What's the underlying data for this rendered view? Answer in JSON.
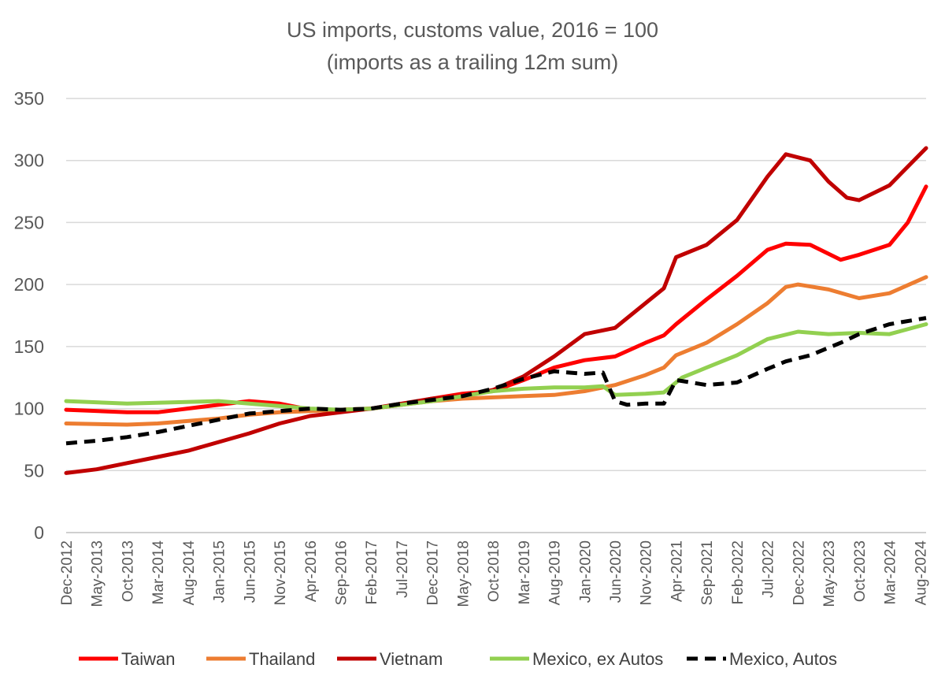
{
  "chart_data": {
    "type": "line",
    "title": "US imports, customs value, 2016 = 100",
    "subtitle": "(imports as a trailing 12m sum)",
    "xlabel": "",
    "ylabel": "",
    "ylim": [
      0,
      350
    ],
    "yticks": [
      "0",
      "50",
      "100",
      "150",
      "200",
      "250",
      "300",
      "350"
    ],
    "x_start": "Dec-2012",
    "x_end": "Sep-2024",
    "xticks": [
      "Dec-2012",
      "May-2013",
      "Oct-2013",
      "Mar-2014",
      "Aug-2014",
      "Jan-2015",
      "Jun-2015",
      "Nov-2015",
      "Apr-2016",
      "Sep-2016",
      "Feb-2017",
      "Jul-2017",
      "Dec-2017",
      "May-2018",
      "Oct-2018",
      "Mar-2019",
      "Aug-2019",
      "Jan-2020",
      "Jun-2020",
      "Nov-2020",
      "Apr-2021",
      "Sep-2021",
      "Feb-2022",
      "Jul-2022",
      "Dec-2022",
      "May-2023",
      "Oct-2023",
      "Mar-2024",
      "Aug-2024"
    ],
    "grid": "horizontal",
    "legend": "bottom",
    "series": [
      {
        "name": "Taiwan",
        "color": "#ff0000",
        "dash": "solid",
        "points": [
          [
            "Dec-2012",
            99
          ],
          [
            "Oct-2013",
            97
          ],
          [
            "Mar-2014",
            97
          ],
          [
            "Jan-2015",
            103
          ],
          [
            "Jun-2015",
            106
          ],
          [
            "Nov-2015",
            104
          ],
          [
            "Apr-2016",
            99
          ],
          [
            "Sep-2016",
            99
          ],
          [
            "Feb-2017",
            100
          ],
          [
            "Jul-2017",
            103
          ],
          [
            "Dec-2017",
            108
          ],
          [
            "May-2018",
            112
          ],
          [
            "Oct-2018",
            114
          ],
          [
            "Mar-2019",
            123
          ],
          [
            "Aug-2019",
            133
          ],
          [
            "Jan-2020",
            139
          ],
          [
            "Jun-2020",
            142
          ],
          [
            "Nov-2020",
            153
          ],
          [
            "Feb-2021",
            159
          ],
          [
            "Apr-2021",
            168
          ],
          [
            "Sep-2021",
            188
          ],
          [
            "Feb-2022",
            207
          ],
          [
            "Jul-2022",
            228
          ],
          [
            "Oct-2022",
            233
          ],
          [
            "Feb-2023",
            232
          ],
          [
            "Jul-2023",
            220
          ],
          [
            "Oct-2023",
            224
          ],
          [
            "Mar-2024",
            232
          ],
          [
            "Jun-2024",
            250
          ],
          [
            "Sep-2024",
            279
          ]
        ]
      },
      {
        "name": "Thailand",
        "color": "#ed7d31",
        "dash": "solid",
        "points": [
          [
            "Dec-2012",
            88
          ],
          [
            "Oct-2013",
            87
          ],
          [
            "Mar-2014",
            88
          ],
          [
            "Jan-2015",
            92
          ],
          [
            "Jun-2015",
            95
          ],
          [
            "Nov-2015",
            97
          ],
          [
            "Apr-2016",
            98
          ],
          [
            "Sep-2016",
            99
          ],
          [
            "Feb-2017",
            100
          ],
          [
            "Jul-2017",
            103
          ],
          [
            "Dec-2017",
            106
          ],
          [
            "May-2018",
            108
          ],
          [
            "Oct-2018",
            109
          ],
          [
            "Mar-2019",
            110
          ],
          [
            "Aug-2019",
            111
          ],
          [
            "Jan-2020",
            114
          ],
          [
            "Jun-2020",
            119
          ],
          [
            "Nov-2020",
            127
          ],
          [
            "Feb-2021",
            133
          ],
          [
            "Apr-2021",
            143
          ],
          [
            "Sep-2021",
            153
          ],
          [
            "Feb-2022",
            168
          ],
          [
            "Jul-2022",
            185
          ],
          [
            "Oct-2022",
            198
          ],
          [
            "Dec-2022",
            200
          ],
          [
            "May-2023",
            196
          ],
          [
            "Oct-2023",
            189
          ],
          [
            "Mar-2024",
            193
          ],
          [
            "Sep-2024",
            206
          ]
        ]
      },
      {
        "name": "Vietnam",
        "color": "#c00000",
        "dash": "solid",
        "points": [
          [
            "Dec-2012",
            48
          ],
          [
            "May-2013",
            51
          ],
          [
            "Oct-2013",
            56
          ],
          [
            "Mar-2014",
            61
          ],
          [
            "Aug-2014",
            66
          ],
          [
            "Jan-2015",
            73
          ],
          [
            "Jun-2015",
            80
          ],
          [
            "Nov-2015",
            88
          ],
          [
            "Apr-2016",
            94
          ],
          [
            "Sep-2016",
            97
          ],
          [
            "Feb-2017",
            100
          ],
          [
            "Jul-2017",
            104
          ],
          [
            "Dec-2017",
            108
          ],
          [
            "May-2018",
            110
          ],
          [
            "Oct-2018",
            115
          ],
          [
            "Mar-2019",
            126
          ],
          [
            "Aug-2019",
            142
          ],
          [
            "Jan-2020",
            160
          ],
          [
            "Jun-2020",
            165
          ],
          [
            "Nov-2020",
            185
          ],
          [
            "Feb-2021",
            197
          ],
          [
            "Apr-2021",
            222
          ],
          [
            "Sep-2021",
            232
          ],
          [
            "Feb-2022",
            252
          ],
          [
            "Jul-2022",
            287
          ],
          [
            "Oct-2022",
            305
          ],
          [
            "Feb-2023",
            300
          ],
          [
            "May-2023",
            283
          ],
          [
            "Aug-2023",
            270
          ],
          [
            "Oct-2023",
            268
          ],
          [
            "Mar-2024",
            280
          ],
          [
            "Sep-2024",
            310
          ]
        ]
      },
      {
        "name": "Mexico, ex Autos",
        "color": "#92d050",
        "dash": "solid",
        "points": [
          [
            "Dec-2012",
            106
          ],
          [
            "Oct-2013",
            104
          ],
          [
            "Jan-2015",
            106
          ],
          [
            "Jun-2015",
            104
          ],
          [
            "Nov-2015",
            102
          ],
          [
            "Apr-2016",
            100
          ],
          [
            "Sep-2016",
            99
          ],
          [
            "Feb-2017",
            100
          ],
          [
            "Jul-2017",
            103
          ],
          [
            "Dec-2017",
            106
          ],
          [
            "May-2018",
            110
          ],
          [
            "Oct-2018",
            114
          ],
          [
            "Mar-2019",
            116
          ],
          [
            "Aug-2019",
            117
          ],
          [
            "Jan-2020",
            117
          ],
          [
            "Apr-2020",
            118
          ],
          [
            "Jun-2020",
            111
          ],
          [
            "Nov-2020",
            112
          ],
          [
            "Feb-2021",
            113
          ],
          [
            "May-2021",
            125
          ],
          [
            "Sep-2021",
            133
          ],
          [
            "Feb-2022",
            143
          ],
          [
            "Jul-2022",
            156
          ],
          [
            "Dec-2022",
            162
          ],
          [
            "May-2023",
            160
          ],
          [
            "Oct-2023",
            161
          ],
          [
            "Mar-2024",
            160
          ],
          [
            "Sep-2024",
            168
          ]
        ]
      },
      {
        "name": "Mexico, Autos",
        "color": "#000000",
        "dash": "dashed",
        "points": [
          [
            "Dec-2012",
            72
          ],
          [
            "May-2013",
            74
          ],
          [
            "Oct-2013",
            77
          ],
          [
            "Mar-2014",
            81
          ],
          [
            "Aug-2014",
            86
          ],
          [
            "Jan-2015",
            91
          ],
          [
            "Jun-2015",
            96
          ],
          [
            "Nov-2015",
            98
          ],
          [
            "Apr-2016",
            100
          ],
          [
            "Sep-2016",
            99
          ],
          [
            "Feb-2017",
            100
          ],
          [
            "Jul-2017",
            104
          ],
          [
            "Dec-2017",
            107
          ],
          [
            "May-2018",
            110
          ],
          [
            "Oct-2018",
            116
          ],
          [
            "Mar-2019",
            124
          ],
          [
            "Aug-2019",
            130
          ],
          [
            "Jan-2020",
            128
          ],
          [
            "Apr-2020",
            129
          ],
          [
            "Jun-2020",
            106
          ],
          [
            "Aug-2020",
            103
          ],
          [
            "Nov-2020",
            104
          ],
          [
            "Feb-2021",
            104
          ],
          [
            "Apr-2021",
            123
          ],
          [
            "Sep-2021",
            119
          ],
          [
            "Feb-2022",
            121
          ],
          [
            "Jul-2022",
            132
          ],
          [
            "Oct-2022",
            138
          ],
          [
            "Feb-2023",
            143
          ],
          [
            "Jul-2023",
            153
          ],
          [
            "Oct-2023",
            160
          ],
          [
            "Mar-2024",
            168
          ],
          [
            "Sep-2024",
            173
          ]
        ]
      }
    ]
  }
}
